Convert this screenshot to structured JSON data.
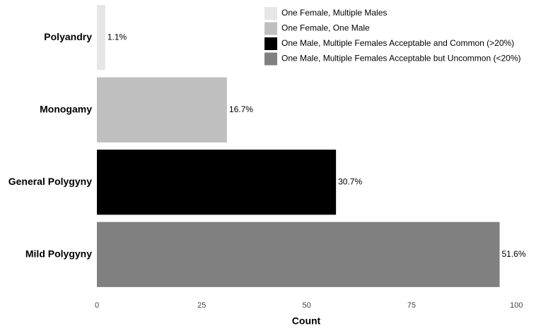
{
  "chart_data": {
    "type": "bar",
    "orientation": "horizontal",
    "categories": [
      "Polyandry",
      "Monogamy",
      "General Polygyny",
      "Mild Polygyny"
    ],
    "values": [
      2,
      31,
      57,
      96
    ],
    "percent_labels": [
      "1.1%",
      "16.7%",
      "30.7%",
      "51.6%"
    ],
    "colors": [
      "#e6e6e6",
      "#bfbfbf",
      "#000000",
      "#808080"
    ],
    "legend": [
      "One Female, Multiple Males",
      "One Female, One Male",
      "One Male, Multiple Females Acceptable and Common (>20%)",
      "One Male, Multiple Females Acceptable but Uncommon (<20%)"
    ],
    "xlabel": "Count",
    "xlim": [
      0,
      103
    ],
    "xticks": [
      0,
      25,
      50,
      75,
      100
    ],
    "grid": false
  }
}
